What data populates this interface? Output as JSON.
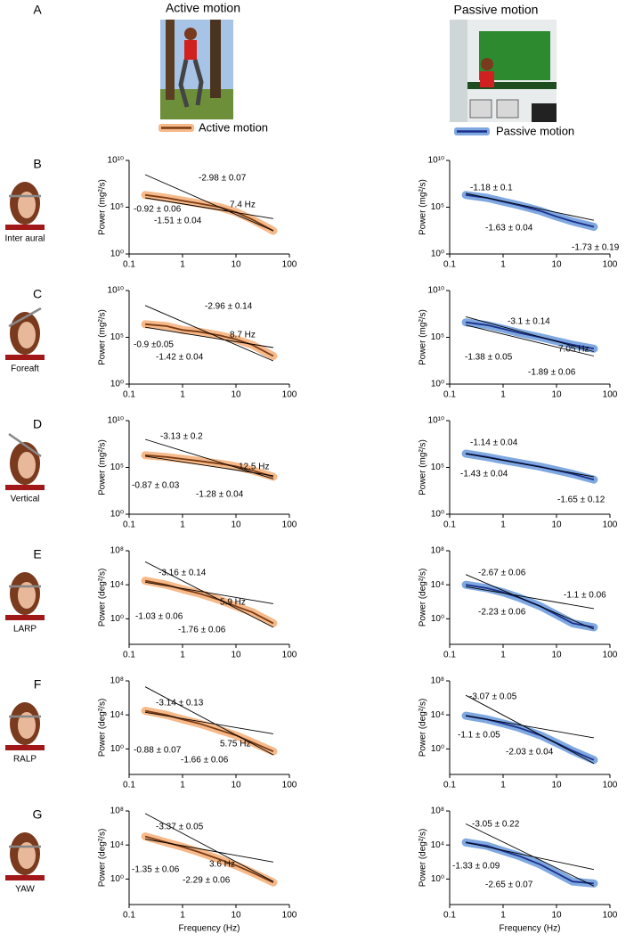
{
  "header": {
    "label": "A",
    "active_title": "Active motion",
    "passive_title": "Passive motion",
    "active_legend": "Active motion",
    "passive_legend": "Passive motion",
    "active_color": "#f5b98a",
    "active_line": "#7b3a12",
    "passive_color": "#7fa8e0",
    "passive_line": "#1a2f8a"
  },
  "rows": [
    {
      "label": "B",
      "icon_label": "Inter aural"
    },
    {
      "label": "C",
      "icon_label": "Foreaft"
    },
    {
      "label": "D",
      "icon_label": "Vertical"
    },
    {
      "label": "E",
      "icon_label": "LARP"
    },
    {
      "label": "F",
      "icon_label": "RALP"
    },
    {
      "label": "G",
      "icon_label": "YAW"
    }
  ],
  "chart_data": [
    {
      "type": "line",
      "ylabel": "Power (mg²/s)",
      "log_x": true,
      "log_y": true,
      "x": [
        0.2,
        0.5,
        1,
        2,
        5,
        10,
        20,
        50
      ],
      "xlim": [
        0.1,
        100
      ],
      "xticks": [
        0.1,
        1,
        10,
        100
      ],
      "ylim": [
        1,
        10000000000.0
      ],
      "yticks": [
        {
          "value": 1,
          "label": "10⁰"
        },
        {
          "value": 100000,
          "label": "10⁵"
        },
        {
          "value": 10000000000.0,
          "label": "10¹⁰"
        }
      ],
      "series": [
        {
          "color": "#7b3a12",
          "band_color": "#f5b98a",
          "values": [
            2000000.0,
            1000000.0,
            500000.0,
            250000.0,
            100000.0,
            30000.0,
            5000.0,
            300
          ]
        }
      ],
      "fits": [
        {
          "x": [
            0.2,
            50
          ],
          "values": [
            1000000.0,
            6000.0
          ]
        },
        {
          "x": [
            0.2,
            50
          ],
          "values": [
            300000000.0,
            300
          ]
        }
      ],
      "annotations": [
        {
          "text": "-2.98 ± 0.07",
          "color": "#000"
        },
        {
          "text": "-0.92 ± 0.06",
          "color": "#000"
        },
        {
          "text": "7.4 Hz",
          "color": "#000"
        },
        {
          "text": "-1.51 ± 0.04",
          "color": "#3a6ea5"
        }
      ]
    },
    {
      "type": "line",
      "ylabel": "Power (mg²/s)",
      "log_x": true,
      "log_y": true,
      "x": [
        0.2,
        0.5,
        1,
        2,
        5,
        10,
        20,
        50
      ],
      "xlim": [
        0.1,
        100
      ],
      "xticks": [
        0.1,
        1,
        10,
        100
      ],
      "ylim": [
        1,
        10000000000.0
      ],
      "yticks": [
        {
          "value": 1,
          "label": "10⁰"
        },
        {
          "value": 100000,
          "label": "10⁵"
        },
        {
          "value": 10000000000.0,
          "label": "10¹⁰"
        }
      ],
      "series": [
        {
          "color": "#1a2f8a",
          "band_color": "#7fa8e0",
          "values": [
            2000000.0,
            1000000.0,
            400000.0,
            160000.0,
            40000.0,
            10000.0,
            3000.0,
            800
          ]
        }
      ],
      "fits": [
        {
          "x": [
            0.2,
            50
          ],
          "values": [
            3000000.0,
            4000.0
          ]
        }
      ],
      "annotations": [
        {
          "text": "-1.18 ± 0.1",
          "color": "#000"
        },
        {
          "text": "-1.63 ± 0.04",
          "color": "#3a6ea5"
        },
        {
          "text": "-1.73 ± 0.19",
          "color": "#000"
        }
      ]
    },
    {
      "type": "line",
      "ylabel": "Power (mg²/s)",
      "log_x": true,
      "log_y": true,
      "x": [
        0.2,
        0.5,
        1,
        2,
        5,
        10,
        20,
        50
      ],
      "xlim": [
        0.1,
        100
      ],
      "xticks": [
        0.1,
        1,
        10,
        100
      ],
      "ylim": [
        1,
        10000000000.0
      ],
      "yticks": [
        {
          "value": 1,
          "label": "10⁰"
        },
        {
          "value": 100000,
          "label": "10⁵"
        },
        {
          "value": 10000000000.0,
          "label": "10¹⁰"
        }
      ],
      "series": [
        {
          "color": "#7b3a12",
          "band_color": "#f5b98a",
          "values": [
            2500000.0,
            1600000.0,
            600000.0,
            400000.0,
            160000.0,
            60000.0,
            16000.0,
            1000.0
          ]
        }
      ],
      "fits": [
        {
          "x": [
            0.2,
            50
          ],
          "values": [
            1200000.0,
            8000.0
          ]
        },
        {
          "x": [
            0.2,
            50
          ],
          "values": [
            250000000.0,
            300
          ]
        }
      ],
      "annotations": [
        {
          "text": "-2.96 ± 0.14",
          "color": "#000"
        },
        {
          "text": "8.7 Hz",
          "color": "#000"
        },
        {
          "text": "-0.9 ±0.05",
          "color": "#000"
        },
        {
          "text": "-1.42 ± 0.04",
          "color": "#3a6ea5"
        }
      ]
    },
    {
      "type": "line",
      "ylabel": "Power (mg²/s)",
      "log_x": true,
      "log_y": true,
      "x": [
        0.2,
        0.5,
        1,
        2,
        5,
        10,
        20,
        50
      ],
      "xlim": [
        0.1,
        100
      ],
      "xticks": [
        0.1,
        1,
        10,
        100
      ],
      "ylim": [
        1,
        10000000000.0
      ],
      "yticks": [
        {
          "value": 1,
          "label": "10⁰"
        },
        {
          "value": 100000,
          "label": "10⁵"
        },
        {
          "value": 10000000000.0,
          "label": "10¹⁰"
        }
      ],
      "series": [
        {
          "color": "#1a2f8a",
          "band_color": "#7fa8e0",
          "values": [
            4000000.0,
            2000000.0,
            800000.0,
            300000.0,
            100000.0,
            40000.0,
            16000.0,
            6000.0
          ]
        }
      ],
      "fits": [
        {
          "x": [
            0.2,
            50
          ],
          "values": [
            2000000.0,
            1000.0
          ]
        },
        {
          "x": [
            0.2,
            50
          ],
          "values": [
            16000000.0,
            3000.0
          ]
        }
      ],
      "annotations": [
        {
          "text": "-3.1 ±  0.14",
          "color": "#000"
        },
        {
          "text": "7.05 Hz",
          "color": "#000"
        },
        {
          "text": "-1.38 ± 0.05",
          "color": "#000"
        },
        {
          "text": "-1.89 ± 0.06",
          "color": "#3a6ea5"
        }
      ]
    },
    {
      "type": "line",
      "ylabel": "Power (mg²/s)",
      "log_x": true,
      "log_y": true,
      "x": [
        0.2,
        0.5,
        1,
        2,
        5,
        10,
        20,
        50
      ],
      "xlim": [
        0.1,
        100
      ],
      "xticks": [
        0.1,
        1,
        10,
        100
      ],
      "ylim": [
        1,
        10000000000.0
      ],
      "yticks": [
        {
          "value": 1,
          "label": "10⁰"
        },
        {
          "value": 100000,
          "label": "10⁵"
        },
        {
          "value": 10000000000.0,
          "label": "10¹⁰"
        }
      ],
      "series": [
        {
          "color": "#7b3a12",
          "band_color": "#f5b98a",
          "values": [
            2000000.0,
            1300000.0,
            800000.0,
            500000.0,
            250000.0,
            130000.0,
            50000.0,
            10000.0
          ]
        }
      ],
      "fits": [
        {
          "x": [
            0.2,
            50
          ],
          "values": [
            1600000.0,
            13000.0
          ]
        },
        {
          "x": [
            0.2,
            50
          ],
          "values": [
            100000000.0,
            6000.0
          ]
        }
      ],
      "annotations": [
        {
          "text": "-3.13 ± 0.2",
          "color": "#000"
        },
        {
          "text": "12.5 Hz",
          "color": "#000"
        },
        {
          "text": "-0.87 ± 0.03",
          "color": "#000"
        },
        {
          "text": "-1.28 ± 0.04",
          "color": "#3a6ea5"
        }
      ]
    },
    {
      "type": "line",
      "ylabel": "Power (mg²/s)",
      "log_x": true,
      "log_y": true,
      "x": [
        0.2,
        0.5,
        1,
        2,
        5,
        10,
        20,
        50
      ],
      "xlim": [
        0.1,
        100
      ],
      "xticks": [
        0.1,
        1,
        10,
        100
      ],
      "ylim": [
        1,
        10000000000.0
      ],
      "yticks": [
        {
          "value": 1,
          "label": "10⁰"
        },
        {
          "value": 100000,
          "label": "10⁵"
        },
        {
          "value": 10000000000.0,
          "label": "10¹⁰"
        }
      ],
      "series": [
        {
          "color": "#1a2f8a",
          "band_color": "#7fa8e0",
          "values": [
            3000000.0,
            1300000.0,
            600000.0,
            300000.0,
            120000.0,
            50000.0,
            20000.0,
            5000.0
          ]
        }
      ],
      "fits": [
        {
          "x": [
            0.2,
            50
          ],
          "values": [
            3000000.0,
            10000.0
          ]
        }
      ],
      "annotations": [
        {
          "text": "-1.14 ± 0.04",
          "color": "#000"
        },
        {
          "text": "-1.43 ± 0.04",
          "color": "#3a6ea5"
        },
        {
          "text": "-1.65 ± 0.12",
          "color": "#000"
        }
      ]
    },
    {
      "type": "line",
      "ylabel": "Power (deg²/s)",
      "log_x": true,
      "log_y": true,
      "x": [
        0.2,
        0.5,
        1,
        2,
        5,
        10,
        20,
        50
      ],
      "xlim": [
        0.1,
        100
      ],
      "xticks": [
        0.1,
        1,
        10,
        100
      ],
      "ylim": [
        0.001,
        100000000.0
      ],
      "yticks": [
        {
          "value": 1,
          "label": "10⁰"
        },
        {
          "value": 10000,
          "label": "10⁴"
        },
        {
          "value": 100000000.0,
          "label": "10⁸"
        }
      ],
      "series": [
        {
          "color": "#7b3a12",
          "band_color": "#f5b98a",
          "values": [
            30000.0,
            10000.0,
            3000.0,
            1000.0,
            160,
            30,
            6,
            0.3
          ]
        }
      ],
      "fits": [
        {
          "x": [
            0.2,
            50
          ],
          "values": [
            20000.0,
            60
          ]
        },
        {
          "x": [
            0.2,
            50
          ],
          "values": [
            5000000.0,
            0.1
          ]
        }
      ],
      "annotations": [
        {
          "text": "-3.16 ± 0.14",
          "color": "#000"
        },
        {
          "text": "5.9 Hz",
          "color": "#000"
        },
        {
          "text": "-1.03 ± 0.06",
          "color": "#000"
        },
        {
          "text": "-1.76 ± 0.06",
          "color": "#3a6ea5"
        }
      ]
    },
    {
      "type": "line",
      "ylabel": "Power (deg²/s)",
      "log_x": true,
      "log_y": true,
      "x": [
        0.2,
        0.5,
        1,
        2,
        5,
        10,
        20,
        50
      ],
      "xlim": [
        0.1,
        100
      ],
      "xticks": [
        0.1,
        1,
        10,
        100
      ],
      "ylim": [
        0.001,
        100000000.0
      ],
      "yticks": [
        {
          "value": 1,
          "label": "10⁰"
        },
        {
          "value": 10000,
          "label": "10⁴"
        },
        {
          "value": 100000000.0,
          "label": "10⁸"
        }
      ],
      "series": [
        {
          "color": "#1a2f8a",
          "band_color": "#7fa8e0",
          "values": [
            10000.0,
            4000.0,
            1300.0,
            300,
            30,
            3,
            0.3,
            0.1
          ]
        }
      ],
      "fits": [
        {
          "x": [
            0.2,
            50
          ],
          "values": [
            160000.0,
            0.06
          ]
        },
        {
          "x": [
            0.2,
            50
          ],
          "values": [
            6000.0,
            16
          ]
        }
      ],
      "annotations": [
        {
          "text": "-2.67 ± 0.06",
          "color": "#000"
        },
        {
          "text": "-1.1 ± 0.06",
          "color": "#000"
        },
        {
          "text": "-2.23 ± 0.06",
          "color": "#3a6ea5"
        }
      ]
    },
    {
      "type": "line",
      "ylabel": "Power (deg²/s)",
      "log_x": true,
      "log_y": true,
      "x": [
        0.2,
        0.5,
        1,
        2,
        5,
        10,
        20,
        50
      ],
      "xlim": [
        0.1,
        100
      ],
      "xticks": [
        0.1,
        1,
        10,
        100
      ],
      "ylim": [
        0.001,
        100000000.0
      ],
      "yticks": [
        {
          "value": 1,
          "label": "10⁰"
        },
        {
          "value": 10000,
          "label": "10⁴"
        },
        {
          "value": 100000000.0,
          "label": "10⁸"
        }
      ],
      "series": [
        {
          "color": "#7b3a12",
          "band_color": "#f5b98a",
          "values": [
            30000.0,
            10000.0,
            3000.0,
            1000.0,
            160,
            40,
            6,
            0.5
          ]
        }
      ],
      "fits": [
        {
          "x": [
            0.2,
            50
          ],
          "values": [
            20000.0,
            60
          ]
        },
        {
          "x": [
            0.2,
            50
          ],
          "values": [
            20000000.0,
            0.2
          ]
        }
      ],
      "annotations": [
        {
          "text": "-3.14 ± 0.13",
          "color": "#000"
        },
        {
          "text": "5.75 Hz",
          "color": "#000"
        },
        {
          "text": "-0.88 ± 0.07",
          "color": "#000"
        },
        {
          "text": "-1.66 ± 0.06",
          "color": "#3a6ea5"
        }
      ]
    },
    {
      "type": "line",
      "ylabel": "Power (deg²/s)",
      "log_x": true,
      "log_y": true,
      "x": [
        0.2,
        0.5,
        1,
        2,
        5,
        10,
        20,
        50
      ],
      "xlim": [
        0.1,
        100
      ],
      "xticks": [
        0.1,
        1,
        10,
        100
      ],
      "ylim": [
        0.001,
        100000000.0
      ],
      "yticks": [
        {
          "value": 1,
          "label": "10⁰"
        },
        {
          "value": 10000,
          "label": "10⁴"
        },
        {
          "value": 100000000.0,
          "label": "10⁸"
        }
      ],
      "series": [
        {
          "color": "#1a2f8a",
          "band_color": "#7fa8e0",
          "values": [
            8000.0,
            3000.0,
            1000.0,
            300,
            40,
            5,
            0.6,
            0.05
          ]
        }
      ],
      "fits": [
        {
          "x": [
            0.2,
            50
          ],
          "values": [
            8000.0,
            20
          ]
        },
        {
          "x": [
            0.2,
            50
          ],
          "values": [
            2000000.0,
            0.02
          ]
        }
      ],
      "annotations": [
        {
          "text": "-3.07 ± 0.05",
          "color": "#000"
        },
        {
          "text": "-1.1 ± 0.05",
          "color": "#000"
        },
        {
          "text": "-2.03 ± 0.04",
          "color": "#3a6ea5"
        }
      ]
    },
    {
      "type": "line",
      "ylabel": "Power (deg²/s)",
      "xlabel": "Frequency (Hz)",
      "log_x": true,
      "log_y": true,
      "x": [
        0.2,
        0.5,
        1,
        2,
        5,
        10,
        20,
        50
      ],
      "xlim": [
        0.1,
        100
      ],
      "xticks": [
        0.1,
        1,
        10,
        100
      ],
      "ylim": [
        0.001,
        100000000.0
      ],
      "yticks": [
        {
          "value": 1,
          "label": "10⁰"
        },
        {
          "value": 10000,
          "label": "10⁴"
        },
        {
          "value": 100000000.0,
          "label": "10⁸"
        }
      ],
      "series": [
        {
          "color": "#7b3a12",
          "band_color": "#f5b98a",
          "values": [
            100000.0,
            20000.0,
            6000.0,
            1500.0,
            200,
            40,
            6,
            0.4
          ]
        }
      ],
      "fits": [
        {
          "x": [
            0.2,
            50
          ],
          "values": [
            50000.0,
            100
          ]
        },
        {
          "x": [
            0.2,
            50
          ],
          "values": [
            50000000.0,
            0.5
          ]
        }
      ],
      "annotations": [
        {
          "text": "-3.37 ± 0.05",
          "color": "#000"
        },
        {
          "text": "-1.35 ± 0.06",
          "color": "#000"
        },
        {
          "text": "3.6 Hz",
          "color": "#000"
        },
        {
          "text": "-2.29 ± 0.06",
          "color": "#3a6ea5"
        }
      ]
    },
    {
      "type": "line",
      "ylabel": "Power (deg²/s)",
      "xlabel": "Frequency (Hz)",
      "log_x": true,
      "log_y": true,
      "x": [
        0.2,
        0.5,
        1,
        2,
        5,
        10,
        20,
        50
      ],
      "xlim": [
        0.1,
        100
      ],
      "xticks": [
        0.1,
        1,
        10,
        100
      ],
      "ylim": [
        0.001,
        100000000.0
      ],
      "yticks": [
        {
          "value": 1,
          "label": "10⁰"
        },
        {
          "value": 10000,
          "label": "10⁴"
        },
        {
          "value": 100000000.0,
          "label": "10⁸"
        }
      ],
      "series": [
        {
          "color": "#1a2f8a",
          "band_color": "#7fa8e0",
          "values": [
            20000.0,
            8000.0,
            2000.0,
            500,
            50,
            5,
            0.5,
            0.3
          ]
        }
      ],
      "fits": [
        {
          "x": [
            0.2,
            50
          ],
          "values": [
            20000.0,
            13
          ]
        },
        {
          "x": [
            0.2,
            50
          ],
          "values": [
            3000000.0,
            0.15
          ]
        }
      ],
      "annotations": [
        {
          "text": "-3.05 ± 0.22",
          "color": "#000"
        },
        {
          "text": "-1.33 ± 0.09",
          "color": "#000"
        },
        {
          "text": "-2.65 ± 0.07",
          "color": "#3a6ea5"
        }
      ]
    }
  ]
}
